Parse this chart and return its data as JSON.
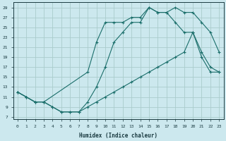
{
  "xlabel": "Humidex (Indice chaleur)",
  "bg_color": "#cce8ee",
  "grid_color": "#aacccc",
  "line_color": "#1a6e6a",
  "line1_x": [
    0,
    1,
    2,
    3,
    4,
    5,
    6,
    7,
    8,
    9,
    10,
    11,
    12,
    13,
    14,
    15,
    16,
    17,
    18,
    19,
    20,
    21,
    22,
    23
  ],
  "line1_y": [
    12,
    11,
    10,
    10,
    9,
    8,
    8,
    8,
    10,
    13,
    17,
    22,
    24,
    26,
    26,
    29,
    28,
    28,
    29,
    28,
    28,
    26,
    24,
    20
  ],
  "line2_x": [
    0,
    1,
    2,
    3,
    4,
    5,
    6,
    7,
    8,
    9,
    10,
    11,
    12,
    13,
    14,
    15,
    16,
    17,
    18,
    19,
    20,
    21,
    22,
    23
  ],
  "line2_y": [
    12,
    11,
    10,
    10,
    9,
    8,
    8,
    8,
    9,
    10,
    11,
    12,
    13,
    14,
    15,
    16,
    17,
    18,
    19,
    20,
    24,
    19,
    16,
    16
  ],
  "line3_x": [
    0,
    1,
    2,
    3,
    8,
    9,
    10,
    11,
    12,
    13,
    14,
    15,
    16,
    17,
    18,
    19,
    20,
    21,
    22,
    23
  ],
  "line3_y": [
    12,
    11,
    10,
    10,
    16,
    22,
    26,
    26,
    26,
    27,
    27,
    29,
    28,
    28,
    26,
    24,
    24,
    20,
    17,
    16
  ],
  "xlim": [
    -0.5,
    23.5
  ],
  "ylim": [
    6.5,
    30
  ],
  "yticks": [
    7,
    9,
    11,
    13,
    15,
    17,
    19,
    21,
    23,
    25,
    27,
    29
  ],
  "xticks": [
    0,
    1,
    2,
    3,
    4,
    5,
    6,
    7,
    8,
    9,
    10,
    11,
    12,
    13,
    14,
    15,
    16,
    17,
    18,
    19,
    20,
    21,
    22,
    23
  ]
}
